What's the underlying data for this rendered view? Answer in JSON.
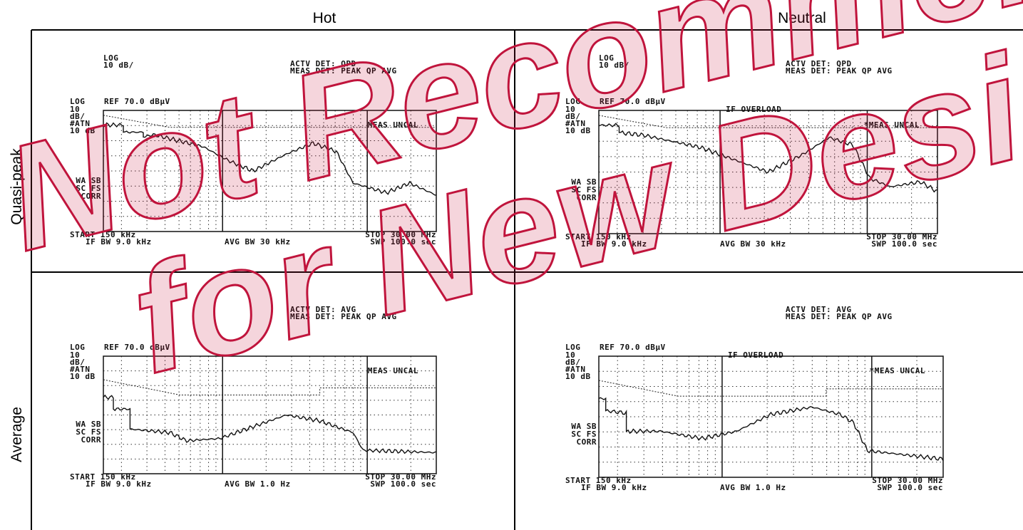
{
  "columns": [
    "Hot",
    "Neutral"
  ],
  "rows": [
    "Quasi-peak",
    "Average"
  ],
  "watermark": [
    "Not Recommended",
    "for New Designs"
  ],
  "panels": [
    {
      "scale": [
        "LOG",
        "10 dB/"
      ],
      "actv_det": "ACTV DET: QPD",
      "meas_det": "MEAS DET: PEAK QP AVG",
      "ref_log": "LOG",
      "ref": "REF 70.0 dBµV",
      "left": [
        "10",
        "dB/",
        "#ATN",
        "10 dB"
      ],
      "uncal": "MEAS UNCAL",
      "corr": [
        "WA SB",
        "SC FS",
        "CORR"
      ],
      "start": "START 150 kHz",
      "if_bw": "IF BW 9.0 kHz",
      "avg_bw": "AVG BW 30 kHz",
      "stop": "STOP 30.00 MHz",
      "swp": "SWP 100.0  sec"
    },
    {
      "scale": [
        "LOG",
        "10 dB/"
      ],
      "actv_det": "ACTV DET: QPD",
      "meas_det": "MEAS DET: PEAK QP AVG",
      "ref_log": "LOG",
      "ref": "REF 70.0 dBµV",
      "left": [
        "10",
        "dB/",
        "#ATN",
        "10 dB"
      ],
      "overload": "IF OVERLOAD",
      "uncal": "*MEAS UNCAL",
      "corr": [
        "WA SB",
        "SC FS",
        "CORR"
      ],
      "start": "START 150 kHz",
      "if_bw": "IF BW 9.0 kHz",
      "avg_bw": "AVG BW 30 kHz",
      "stop": "STOP 30.00 MHz",
      "swp": "SWP 100.0  sec"
    },
    {
      "actv_det": "ACTV DET: AVG",
      "meas_det": "MEAS DET: PEAK QP AVG",
      "ref_log": "LOG",
      "ref": "REF 70.0 dBµV",
      "left": [
        "10",
        "dB/",
        "#ATN",
        "10 dB"
      ],
      "uncal": "MEAS UNCAL",
      "corr": [
        "WA SB",
        "SC FS",
        "CORR"
      ],
      "start": "START 150 kHz",
      "if_bw": "IF BW 9.0 kHz",
      "avg_bw": "AVG BW 1.0 Hz",
      "stop": "STOP 30.00 MHz",
      "swp": "SWP 100.0  sec"
    },
    {
      "actv_det": "ACTV DET: AVG",
      "meas_det": "MEAS DET: PEAK QP AVG",
      "ref_log": "LOG",
      "ref": "REF 70.0 dBµV",
      "left": [
        "10",
        "dB/",
        "#ATN",
        "10 dB"
      ],
      "overload": "IF OVERLOAD",
      "uncal": "*MEAS UNCAL",
      "corr": [
        "WA SB",
        "SC FS",
        "CORR"
      ],
      "start": "START 150 kHz",
      "if_bw": "IF BW 9.0 kHz",
      "avg_bw": "AVG BW 1.0 Hz",
      "stop": "STOP 30.00 MHz",
      "swp": "SWP 100.0  sec"
    }
  ]
}
